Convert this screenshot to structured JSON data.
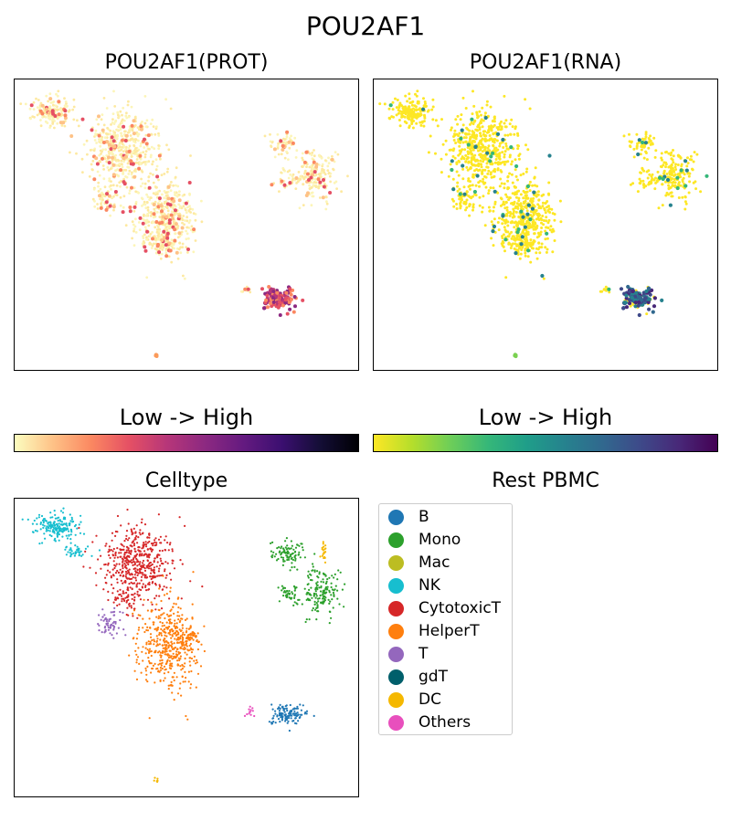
{
  "figure": {
    "title": "POU2AF1",
    "dataset_label": "Rest PBMC"
  },
  "colorbars": {
    "prot_label": "Low  ->  High",
    "rna_label": "Low  ->  High"
  },
  "chart_data": [
    {
      "type": "scatter",
      "title": "POU2AF1(PROT)",
      "colormap": "magma_r",
      "color_scale": "Low -> High",
      "grid": false,
      "legend": "none"
    },
    {
      "type": "scatter",
      "title": "POU2AF1(RNA)",
      "colormap": "viridis_r",
      "color_scale": "Low -> High",
      "grid": false,
      "legend": "none"
    },
    {
      "type": "scatter",
      "title": "Celltype",
      "legend": "right",
      "grid": false,
      "legend_entries": [
        {
          "name": "B",
          "color": "#1f77b4"
        },
        {
          "name": "Mono",
          "color": "#2ca02c"
        },
        {
          "name": "Mac",
          "color": "#bcbd22"
        },
        {
          "name": "NK",
          "color": "#17becf"
        },
        {
          "name": "CytotoxicT",
          "color": "#d62728"
        },
        {
          "name": "HelperT",
          "color": "#ff7f0e"
        },
        {
          "name": "T",
          "color": "#9467bd"
        },
        {
          "name": "gdT",
          "color": "#005f6b"
        },
        {
          "name": "DC",
          "color": "#f5b800"
        },
        {
          "name": "Others",
          "color": "#e84fbd"
        }
      ]
    }
  ]
}
